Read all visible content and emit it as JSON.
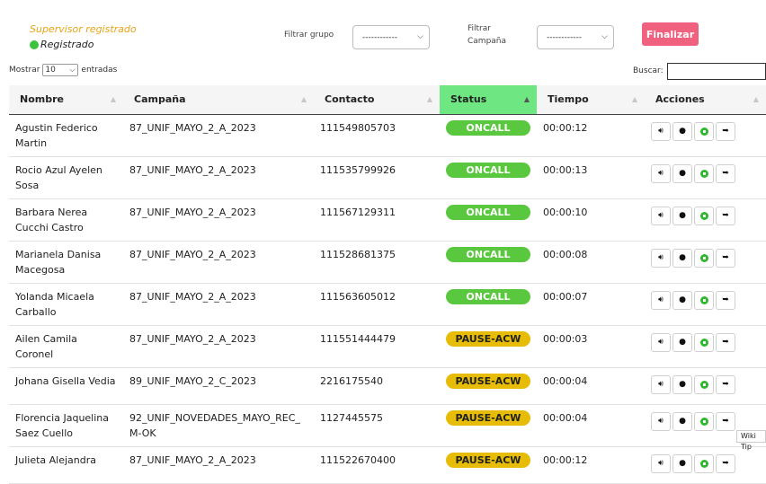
{
  "supervisor": {
    "title": "Supervisor registrado",
    "status": "Registrado"
  },
  "filters": {
    "group_label": "Filtrar grupo",
    "group_value": "------------",
    "campaign_label_1": "Filtrar",
    "campaign_label_2": "Campaña",
    "campaign_value": "------------"
  },
  "finalize_label": "Finalizar",
  "entries": {
    "show_label": "Mostrar",
    "count": "10",
    "suffix": "entradas"
  },
  "search_label": "Buscar:",
  "columns": [
    "Nombre",
    "Campaña",
    "Contacto",
    "Status",
    "Tiempo",
    "Acciones"
  ],
  "rows": [
    {
      "name": "Agustin Federico Martin",
      "campaign": "87_UNIF_MAYO_2_A_2023",
      "contact": "111549805703",
      "status": "ONCALL",
      "time": "00:00:12"
    },
    {
      "name": "Rocio Azul Ayelen Sosa",
      "campaign": "87_UNIF_MAYO_2_A_2023",
      "contact": "111535799926",
      "status": "ONCALL",
      "time": "00:00:13"
    },
    {
      "name": "Barbara Nerea Cucchi Castro",
      "campaign": "87_UNIF_MAYO_2_A_2023",
      "contact": "111567129311",
      "status": "ONCALL",
      "time": "00:00:10"
    },
    {
      "name": "Marianela Danisa Macegosa",
      "campaign": "87_UNIF_MAYO_2_A_2023",
      "contact": "111528681375",
      "status": "ONCALL",
      "time": "00:00:08"
    },
    {
      "name": "Yolanda Micaela Carballo",
      "campaign": "87_UNIF_MAYO_2_A_2023",
      "contact": "111563605012",
      "status": "ONCALL",
      "time": "00:00:07"
    },
    {
      "name": "Ailen Camila Coronel",
      "campaign": "87_UNIF_MAYO_2_A_2023",
      "contact": "111551444479",
      "status": "PAUSE-ACW",
      "time": "00:00:03"
    },
    {
      "name": "Johana Gisella Vedia",
      "campaign": "89_UNIF_MAYO_2_C_2023",
      "contact": "2216175540",
      "status": "PAUSE-ACW",
      "time": "00:00:04"
    },
    {
      "name": "Florencia Jaquelina Saez Cuello",
      "campaign": "92_UNIF_NOVEDADES_MAYO_REC_M-OK",
      "contact": "1127445575",
      "status": "PAUSE-ACW",
      "time": "00:00:04"
    },
    {
      "name": "Julieta Alejandra",
      "campaign": "87_UNIF_MAYO_2_A_2023",
      "contact": "111522670400",
      "status": "PAUSE-ACW",
      "time": "00:00:12"
    }
  ],
  "tooltip": "Wiki Tip",
  "colors": {
    "oncall": "#59c83e",
    "pause": "#e6bc06",
    "accent": "#f0607f",
    "status_header": "#6ee682"
  }
}
